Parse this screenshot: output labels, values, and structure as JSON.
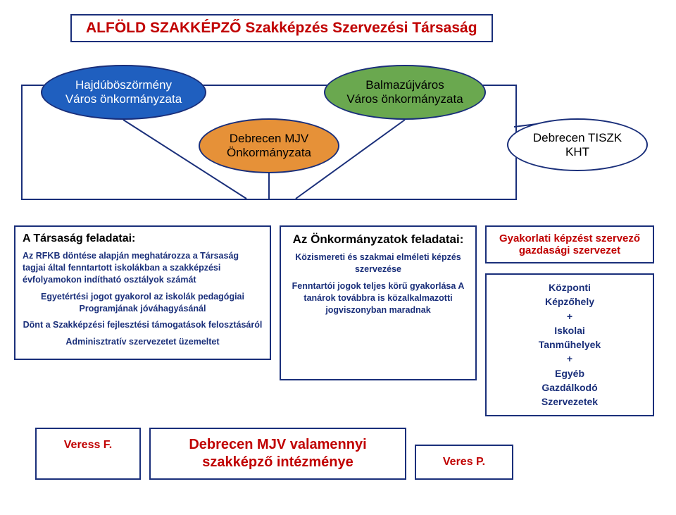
{
  "title": "ALFÖLD SZAKKÉPZŐ Szakképzés Szervezési Társaság",
  "ellipses": {
    "blue": {
      "line1": "Hajdúböszörmény",
      "line2": "Város önkormányzata",
      "bg": "#1f5fbf",
      "fg": "#ffffff"
    },
    "orange": {
      "line1": "Debrecen MJV",
      "line2": "Önkormányzata",
      "bg": "#e69138",
      "fg": "#000000"
    },
    "green": {
      "line1": "Balmazújváros",
      "line2": "Város önkormányzata",
      "bg": "#6aa84f",
      "fg": "#000000"
    },
    "white": {
      "line1": "Debrecen TISZK",
      "line2": "KHT",
      "bg": "#ffffff",
      "fg": "#000000"
    }
  },
  "border_color": "#1a2f7a",
  "col1": {
    "title": "A Társaság feladatai:",
    "p1": "Az RFKB döntése alapján meghatározza a Társaság tagjai által fenntartott iskolákban a szakképzési évfolyamokon indítható osztályok számát",
    "p2": "Egyetértési jogot gyakorol az iskolák pedagógiai Programjának jóváhagyásánál",
    "p3": "Dönt a Szakképzési fejlesztési támogatások felosztásáról",
    "p4": "Adminisztratív szervezetet üzemeltet"
  },
  "col2": {
    "title": "Az Önkormányzatok feladatai:",
    "p1": "Közismereti és szakmai elméleti képzés szervezése",
    "p2": "Fenntartói jogok teljes körű gyakorlása A tanárok továbbra is közalkalmazotti jogviszonyban maradnak"
  },
  "col3": {
    "top": "Gyakorlati képzést szervező gazdasági szervezet",
    "bottom": "Központi\nKépzőhely\n+\nIskolai\nTanműhelyek\n+\nEgyéb\nGazdálkodó\nSzervezetek"
  },
  "row2": {
    "veress": "Veress F.",
    "debrecen": "Debrecen MJV valamennyi szakképző intézménye",
    "veres": "Veres P."
  }
}
